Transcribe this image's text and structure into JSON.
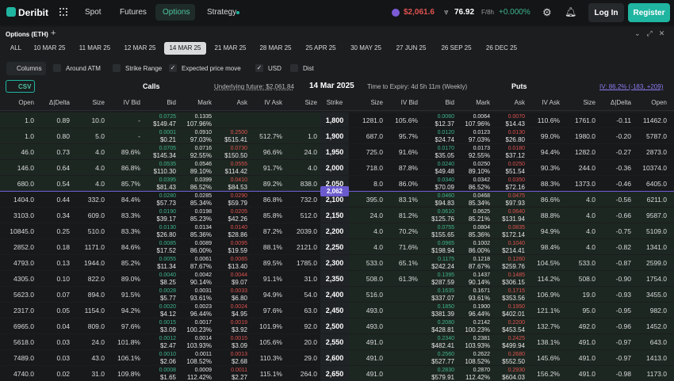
{
  "header": {
    "logo": "Deribit",
    "nav": [
      "Spot",
      "Futures",
      "Options",
      "Strategy"
    ],
    "index_price": "$2,061.6",
    "dvol": "76.92",
    "funding_label": "F/8h",
    "funding": "+0.000%",
    "login": "Log In",
    "register": "Register"
  },
  "panel": {
    "title": "Options (ETH)",
    "add": "+",
    "expiries": [
      "ALL",
      "10 MAR 25",
      "11 MAR 25",
      "12 MAR 25",
      "14 MAR 25",
      "21 MAR 25",
      "28 MAR 25",
      "25 APR 25",
      "30 MAY 25",
      "27 JUN 25",
      "26 SEP 25",
      "26 DEC 25"
    ],
    "active_expiry": "14 MAR 25",
    "toolbar": [
      {
        "label": "Columns"
      },
      {
        "label": "Around ATM",
        "checked": false
      },
      {
        "label": "Strike Range",
        "checked": false
      },
      {
        "label": "Expected price move",
        "checked": true
      },
      {
        "label": "USD",
        "checked": true
      },
      {
        "label": "Dist",
        "checked": false
      }
    ],
    "csv": "CSV",
    "calls": "Calls",
    "underlying": "Underlying future: $2,061.84",
    "date": "14 Mar 2025",
    "expiry_time": "Time to Expiry: 4d 5h 11m (Weekly)",
    "puts": "Puts",
    "iv": "IV: 86.2% (-183, +209)"
  },
  "table": {
    "columns": [
      "Open",
      "Δ|Delta",
      "Size",
      "IV Bid",
      "Bid",
      "Mark",
      "Ask",
      "IV Ask",
      "Size",
      "Strike",
      "Size",
      "IV Bid",
      "Bid",
      "Mark",
      "Ask",
      "IV Ask",
      "Size",
      "Δ|Delta",
      "Open"
    ],
    "atm": "2,062",
    "rows": [
      [
        "1.0",
        "0.89",
        "10.0",
        "-",
        "0.0725",
        "$149.47",
        "0.1335",
        "107.96%",
        null,
        null,
        null,
        null,
        "1,800",
        "1281.0",
        "105.6%",
        "0.0060",
        "$12.37",
        "0.0064",
        "107.96%",
        "0.0070",
        "$14.43",
        "110.6%",
        "1761.0",
        "-0.11",
        "11462.0"
      ],
      [
        "1.0",
        "0.80",
        "5.0",
        "-",
        "0.0001",
        "$0.21",
        "0.0910",
        "97.03%",
        "0.2500",
        "$515.41",
        "512.7%",
        "1.0",
        "1,900",
        "687.0",
        "95.7%",
        "0.0120",
        "$24.74",
        "0.0123",
        "97.03%",
        "0.0130",
        "$26.80",
        "99.0%",
        "1980.0",
        "-0.20",
        "5787.0"
      ],
      [
        "46.0",
        "0.73",
        "4.0",
        "89.6%",
        "0.0705",
        "$145.34",
        "0.0716",
        "92.55%",
        "0.0730",
        "$150.50",
        "96.6%",
        "24.0",
        "1,950",
        "725.0",
        "91.6%",
        "0.0170",
        "$35.05",
        "0.0173",
        "92.55%",
        "0.0180",
        "$37.12",
        "94.4%",
        "1282.0",
        "-0.27",
        "2873.0"
      ],
      [
        "146.0",
        "0.64",
        "4.0",
        "86.8%",
        "0.0535",
        "$110.30",
        "0.0546",
        "89.10%",
        "0.0555",
        "$114.42",
        "91.7%",
        "4.0",
        "2,000",
        "718.0",
        "87.8%",
        "0.0240",
        "$49.48",
        "0.0250",
        "89.10%",
        "0.0250",
        "$51.54",
        "90.3%",
        "244.0",
        "-0.36",
        "10374.0"
      ],
      [
        "680.0",
        "0.54",
        "4.0",
        "85.7%",
        "0.0395",
        "$81.43",
        "0.0399",
        "86.52%",
        "0.0410",
        "$84.53",
        "89.2%",
        "838.0",
        "2,050",
        "8.0",
        "86.0%",
        "0.0340",
        "$70.09",
        "0.0342",
        "86.52%",
        "0.0350",
        "$72.16",
        "88.3%",
        "1373.0",
        "-0.46",
        "6405.0"
      ],
      [
        "1404.0",
        "0.44",
        "332.0",
        "84.4%",
        "0.0280",
        "$57.73",
        "0.0285",
        "85.34%",
        "0.0290",
        "$59.79",
        "86.8%",
        "732.0",
        "2,100",
        "395.0",
        "83.1%",
        "0.0460",
        "$94.83",
        "0.0468",
        "85.34%",
        "0.0475",
        "$97.93",
        "86.6%",
        "4.0",
        "-0.56",
        "6211.0"
      ],
      [
        "3103.0",
        "0.34",
        "609.0",
        "83.3%",
        "0.0190",
        "$39.17",
        "0.0198",
        "85.23%",
        "0.0205",
        "$42.26",
        "85.8%",
        "512.0",
        "2,150",
        "24.0",
        "81.2%",
        "0.0610",
        "$125.76",
        "0.0625",
        "85.21%",
        "0.0640",
        "$131.94",
        "88.8%",
        "4.0",
        "-0.66",
        "9587.0"
      ],
      [
        "10845.0",
        "0.25",
        "510.0",
        "83.3%",
        "0.0130",
        "$26.80",
        "0.0134",
        "85.36%",
        "0.0140",
        "$28.86",
        "87.2%",
        "2039.0",
        "2,200",
        "4.0",
        "70.2%",
        "0.0755",
        "$155.65",
        "0.0804",
        "85.36%",
        "0.0835",
        "$172.14",
        "94.9%",
        "4.0",
        "-0.75",
        "5109.0"
      ],
      [
        "2852.0",
        "0.18",
        "1171.0",
        "84.6%",
        "0.0085",
        "$17.52",
        "0.0089",
        "86.00%",
        "0.0095",
        "$19.59",
        "88.1%",
        "2121.0",
        "2,250",
        "4.0",
        "71.6%",
        "0.0965",
        "$198.94",
        "0.1002",
        "86.00%",
        "0.1040",
        "$214.41",
        "98.4%",
        "4.0",
        "-0.82",
        "1341.0"
      ],
      [
        "4793.0",
        "0.13",
        "1944.0",
        "85.2%",
        "0.0055",
        "$11.34",
        "0.0061",
        "87.67%",
        "0.0065",
        "$13.40",
        "89.5%",
        "1785.0",
        "2,300",
        "533.0",
        "65.1%",
        "0.1175",
        "$242.24",
        "0.1218",
        "87.67%",
        "0.1260",
        "$259.76",
        "104.5%",
        "533.0",
        "-0.87",
        "2599.0"
      ],
      [
        "4305.0",
        "0.10",
        "822.0",
        "89.0%",
        "0.0040",
        "$8.25",
        "0.0042",
        "90.14%",
        "0.0044",
        "$9.07",
        "91.1%",
        "31.0",
        "2,350",
        "508.0",
        "61.3%",
        "0.1395",
        "$287.59",
        "0.1437",
        "90.14%",
        "0.1485",
        "$306.15",
        "114.2%",
        "508.0",
        "-0.90",
        "1754.0"
      ],
      [
        "5623.0",
        "0.07",
        "894.0",
        "91.5%",
        "0.0028",
        "$5.77",
        "0.0031",
        "93.61%",
        "0.0033",
        "$6.80",
        "94.9%",
        "54.0",
        "2,400",
        "516.0",
        null,
        "0.1635",
        "$337.07",
        "0.1671",
        "93.61%",
        "0.1715",
        "$353.56",
        "106.9%",
        "19.0",
        "-0.93",
        "3455.0"
      ],
      [
        "2317.0",
        "0.05",
        "1154.0",
        "94.2%",
        "0.0020",
        "$4.12",
        "0.0023",
        "96.44%",
        "0.0024",
        "$4.95",
        "97.6%",
        "63.0",
        "2,450",
        "493.0",
        null,
        "0.1850",
        "$381.39",
        "0.1900",
        "96.44%",
        "0.1950",
        "$402.01",
        "121.1%",
        "95.0",
        "-0.95",
        "982.0"
      ],
      [
        "6965.0",
        "0.04",
        "809.0",
        "97.6%",
        "0.0015",
        "$3.09",
        "0.0017",
        "100.23%",
        "0.0019",
        "$3.92",
        "101.9%",
        "92.0",
        "2,500",
        "493.0",
        null,
        "0.2080",
        "$428.81",
        "0.2142",
        "100.23%",
        "0.2200",
        "$453.54",
        "132.7%",
        "492.0",
        "-0.96",
        "1452.0"
      ],
      [
        "5618.0",
        "0.03",
        "24.0",
        "101.8%",
        "0.0012",
        "$2.47",
        "0.0014",
        "103.93%",
        "0.0015",
        "$3.09",
        "105.6%",
        "20.0",
        "2,550",
        "491.0",
        null,
        "0.2340",
        "$482.41",
        "0.2381",
        "103.93%",
        "0.2425",
        "$499.94",
        "138.1%",
        "491.0",
        "-0.97",
        "643.0"
      ],
      [
        "7489.0",
        "0.03",
        "43.0",
        "106.1%",
        "0.0010",
        "$2.06",
        "0.0011",
        "108.52%",
        "0.0013",
        "$2.68",
        "110.3%",
        "29.0",
        "2,600",
        "491.0",
        null,
        "0.2560",
        "$527.77",
        "0.2622",
        "108.52%",
        "0.2680",
        "$552.50",
        "145.6%",
        "491.0",
        "-0.97",
        "1413.0"
      ],
      [
        "4740.0",
        "0.02",
        "31.0",
        "109.8%",
        "0.0008",
        "$1.65",
        "0.0009",
        "112.42%",
        "0.0011",
        "$2.27",
        "115.1%",
        "264.0",
        "2,650",
        "491.0",
        null,
        "0.2830",
        "$579.91",
        "0.2870",
        "112.42%",
        "0.2930",
        "$604.03",
        "156.2%",
        "491.0",
        "-0.98",
        "1173.0"
      ]
    ]
  }
}
